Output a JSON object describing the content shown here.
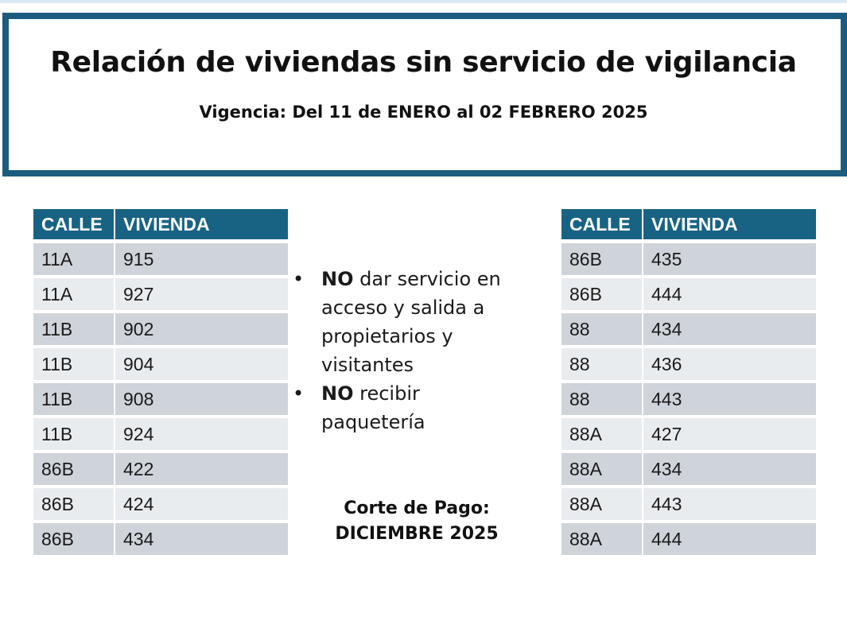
{
  "header": {
    "title": "Relación de viviendas sin servicio de vigilancia",
    "subtitle": "Vigencia: Del 11 de ENERO al 02 FEBRERO 2025"
  },
  "colors": {
    "header_border": "#1c5d7f",
    "table_header_bg": "#186384",
    "row_dark": "#cfd4db",
    "row_light": "#e9ecef"
  },
  "table_left": {
    "columns": [
      "CALLE",
      "VIVIENDA"
    ],
    "rows": [
      [
        "11A",
        "915"
      ],
      [
        "11A",
        "927"
      ],
      [
        "11B",
        "902"
      ],
      [
        "11B",
        "904"
      ],
      [
        "11B",
        "908"
      ],
      [
        "11B",
        "924"
      ],
      [
        "86B",
        "422"
      ],
      [
        "86B",
        "424"
      ],
      [
        "86B",
        "434"
      ]
    ]
  },
  "table_right": {
    "columns": [
      "CALLE",
      "VIVIENDA"
    ],
    "rows": [
      [
        "86B",
        "435"
      ],
      [
        "86B",
        "444"
      ],
      [
        "88",
        "434"
      ],
      [
        "88",
        "436"
      ],
      [
        "88",
        "443"
      ],
      [
        "88A",
        "427"
      ],
      [
        "88A",
        "434"
      ],
      [
        "88A",
        "443"
      ],
      [
        "88A",
        "444"
      ]
    ]
  },
  "notes": {
    "bullet": "•",
    "items": [
      {
        "strong": "NO",
        "text": " dar servicio en acceso y salida a propietarios y visitantes"
      },
      {
        "strong": "NO",
        "text": " recibir paquetería"
      }
    ]
  },
  "corte": {
    "label": "Corte de Pago:",
    "value": "DICIEMBRE 2025"
  }
}
